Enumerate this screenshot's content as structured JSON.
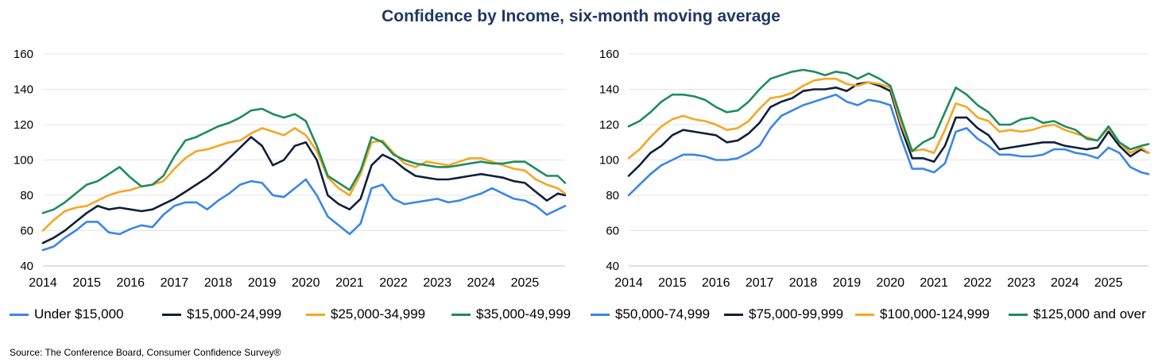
{
  "title": "Confidence by Income, six-month moving average",
  "source": "Source: The Conference Board, Consumer Confidence   Survey®",
  "chart_data": [
    {
      "type": "line",
      "title": "",
      "xlabel": "",
      "ylabel": "",
      "xlim": [
        2014,
        2025.917
      ],
      "ylim": [
        40,
        160
      ],
      "yticks": [
        40,
        60,
        80,
        100,
        120,
        140,
        160
      ],
      "xticks": [
        2014,
        2015,
        2016,
        2017,
        2018,
        2019,
        2020,
        2021,
        2022,
        2023,
        2024,
        2025
      ],
      "grid": true,
      "legend": "bottom",
      "series": [
        {
          "name": "Under $15,000",
          "color": "#3a86e8",
          "x": [
            2014,
            2014.25,
            2014.5,
            2014.75,
            2015,
            2015.25,
            2015.5,
            2015.75,
            2016,
            2016.25,
            2016.5,
            2016.75,
            2017,
            2017.25,
            2017.5,
            2017.75,
            2018,
            2018.25,
            2018.5,
            2018.75,
            2019,
            2019.25,
            2019.5,
            2019.75,
            2020,
            2020.25,
            2020.5,
            2020.75,
            2021,
            2021.25,
            2021.5,
            2021.75,
            2022,
            2022.25,
            2022.5,
            2022.75,
            2023,
            2023.25,
            2023.5,
            2023.75,
            2024,
            2024.25,
            2024.5,
            2024.75,
            2025,
            2025.25,
            2025.5,
            2025.75,
            2025.917
          ],
          "values": [
            49,
            51,
            56,
            60,
            65,
            65,
            59,
            58,
            61,
            63,
            62,
            69,
            74,
            76,
            76,
            72,
            77,
            81,
            86,
            88,
            87,
            80,
            79,
            84,
            89,
            80,
            68,
            63,
            58,
            64,
            84,
            86,
            78,
            75,
            76,
            77,
            78,
            76,
            77,
            79,
            81,
            84,
            81,
            78,
            77,
            74,
            69,
            72,
            74
          ]
        },
        {
          "name": "$15,000-24,999",
          "color": "#0f1f3d",
          "x": [
            2014,
            2014.25,
            2014.5,
            2014.75,
            2015,
            2015.25,
            2015.5,
            2015.75,
            2016,
            2016.25,
            2016.5,
            2016.75,
            2017,
            2017.25,
            2017.5,
            2017.75,
            2018,
            2018.25,
            2018.5,
            2018.75,
            2019,
            2019.25,
            2019.5,
            2019.75,
            2020,
            2020.25,
            2020.5,
            2020.75,
            2021,
            2021.25,
            2021.5,
            2021.75,
            2022,
            2022.25,
            2022.5,
            2022.75,
            2023,
            2023.25,
            2023.5,
            2023.75,
            2024,
            2024.25,
            2024.5,
            2024.75,
            2025,
            2025.25,
            2025.5,
            2025.75,
            2025.917
          ],
          "values": [
            53,
            56,
            60,
            65,
            70,
            74,
            72,
            73,
            72,
            71,
            72,
            75,
            78,
            82,
            86,
            90,
            95,
            101,
            107,
            113,
            108,
            97,
            100,
            108,
            110,
            100,
            80,
            75,
            72,
            78,
            97,
            103,
            100,
            95,
            91,
            90,
            89,
            89,
            90,
            91,
            92,
            91,
            90,
            88,
            87,
            82,
            77,
            81,
            80
          ]
        },
        {
          "name": "$25,000-34,999",
          "color": "#f5a623",
          "x": [
            2014,
            2014.25,
            2014.5,
            2014.75,
            2015,
            2015.25,
            2015.5,
            2015.75,
            2016,
            2016.25,
            2016.5,
            2016.75,
            2017,
            2017.25,
            2017.5,
            2017.75,
            2018,
            2018.25,
            2018.5,
            2018.75,
            2019,
            2019.25,
            2019.5,
            2019.75,
            2020,
            2020.25,
            2020.5,
            2020.75,
            2021,
            2021.25,
            2021.5,
            2021.75,
            2022,
            2022.25,
            2022.5,
            2022.75,
            2023,
            2023.25,
            2023.5,
            2023.75,
            2024,
            2024.25,
            2024.5,
            2024.75,
            2025,
            2025.25,
            2025.5,
            2025.75,
            2025.917
          ],
          "values": [
            60,
            66,
            71,
            73,
            74,
            77,
            80,
            82,
            83,
            85,
            86,
            88,
            95,
            101,
            105,
            106,
            108,
            110,
            111,
            115,
            118,
            116,
            114,
            118,
            114,
            105,
            90,
            84,
            80,
            92,
            110,
            111,
            104,
            98,
            96,
            99,
            98,
            97,
            99,
            101,
            101,
            99,
            97,
            95,
            94,
            89,
            86,
            84,
            81
          ]
        },
        {
          "name": "$35,000-49,999",
          "color": "#1e8c5e",
          "x": [
            2014,
            2014.25,
            2014.5,
            2014.75,
            2015,
            2015.25,
            2015.5,
            2015.75,
            2016,
            2016.25,
            2016.5,
            2016.75,
            2017,
            2017.25,
            2017.5,
            2017.75,
            2018,
            2018.25,
            2018.5,
            2018.75,
            2019,
            2019.25,
            2019.5,
            2019.75,
            2020,
            2020.25,
            2020.5,
            2020.75,
            2021,
            2021.25,
            2021.5,
            2021.75,
            2022,
            2022.25,
            2022.5,
            2022.75,
            2023,
            2023.25,
            2023.5,
            2023.75,
            2024,
            2024.25,
            2024.5,
            2024.75,
            2025,
            2025.25,
            2025.5,
            2025.75,
            2025.917
          ],
          "values": [
            70,
            72,
            76,
            81,
            86,
            88,
            92,
            96,
            90,
            85,
            86,
            91,
            102,
            111,
            113,
            116,
            119,
            121,
            124,
            128,
            129,
            126,
            124,
            126,
            122,
            108,
            91,
            87,
            83,
            94,
            113,
            110,
            103,
            100,
            98,
            97,
            96,
            96,
            97,
            98,
            99,
            98,
            98,
            99,
            99,
            95,
            91,
            91,
            87
          ]
        }
      ]
    },
    {
      "type": "line",
      "title": "",
      "xlabel": "",
      "ylabel": "",
      "xlim": [
        2014,
        2025.917
      ],
      "ylim": [
        40,
        160
      ],
      "yticks": [
        40,
        60,
        80,
        100,
        120,
        140,
        160
      ],
      "xticks": [
        2014,
        2015,
        2016,
        2017,
        2018,
        2019,
        2020,
        2021,
        2022,
        2023,
        2024,
        2025
      ],
      "grid": true,
      "legend": "bottom",
      "series": [
        {
          "name": "$50,000-74,999",
          "color": "#3a86e8",
          "x": [
            2014,
            2014.25,
            2014.5,
            2014.75,
            2015,
            2015.25,
            2015.5,
            2015.75,
            2016,
            2016.25,
            2016.5,
            2016.75,
            2017,
            2017.25,
            2017.5,
            2017.75,
            2018,
            2018.25,
            2018.5,
            2018.75,
            2019,
            2019.25,
            2019.5,
            2019.75,
            2020,
            2020.25,
            2020.5,
            2020.75,
            2021,
            2021.25,
            2021.5,
            2021.75,
            2022,
            2022.25,
            2022.5,
            2022.75,
            2023,
            2023.25,
            2023.5,
            2023.75,
            2024,
            2024.25,
            2024.5,
            2024.75,
            2025,
            2025.25,
            2025.5,
            2025.75,
            2025.917
          ],
          "values": [
            80,
            86,
            92,
            97,
            100,
            103,
            103,
            102,
            100,
            100,
            101,
            104,
            108,
            118,
            125,
            128,
            131,
            133,
            135,
            137,
            133,
            131,
            134,
            133,
            131,
            112,
            95,
            95,
            93,
            98,
            116,
            118,
            112,
            108,
            103,
            103,
            102,
            102,
            103,
            106,
            106,
            104,
            103,
            101,
            107,
            104,
            96,
            93,
            92
          ]
        },
        {
          "name": "$75,000-99,999",
          "color": "#0f1f3d",
          "x": [
            2014,
            2014.25,
            2014.5,
            2014.75,
            2015,
            2015.25,
            2015.5,
            2015.75,
            2016,
            2016.25,
            2016.5,
            2016.75,
            2017,
            2017.25,
            2017.5,
            2017.75,
            2018,
            2018.25,
            2018.5,
            2018.75,
            2019,
            2019.25,
            2019.5,
            2019.75,
            2020,
            2020.25,
            2020.5,
            2020.75,
            2021,
            2021.25,
            2021.5,
            2021.75,
            2022,
            2022.25,
            2022.5,
            2022.75,
            2023,
            2023.25,
            2023.5,
            2023.75,
            2024,
            2024.25,
            2024.5,
            2024.75,
            2025,
            2025.25,
            2025.5,
            2025.75,
            2025.917
          ],
          "values": [
            91,
            97,
            104,
            108,
            114,
            117,
            116,
            115,
            114,
            110,
            111,
            115,
            121,
            130,
            133,
            135,
            139,
            140,
            140,
            141,
            139,
            143,
            144,
            142,
            139,
            118,
            101,
            101,
            99,
            108,
            124,
            124,
            118,
            114,
            106,
            107,
            108,
            109,
            110,
            110,
            108,
            107,
            106,
            107,
            116,
            108,
            102,
            106,
            104
          ]
        },
        {
          "name": "$100,000-124,999",
          "color": "#f5a623",
          "x": [
            2014,
            2014.25,
            2014.5,
            2014.75,
            2015,
            2015.25,
            2015.5,
            2015.75,
            2016,
            2016.25,
            2016.5,
            2016.75,
            2017,
            2017.25,
            2017.5,
            2017.75,
            2018,
            2018.25,
            2018.5,
            2018.75,
            2019,
            2019.25,
            2019.5,
            2019.75,
            2020,
            2020.25,
            2020.5,
            2020.75,
            2021,
            2021.25,
            2021.5,
            2021.75,
            2022,
            2022.25,
            2022.5,
            2022.75,
            2023,
            2023.25,
            2023.5,
            2023.75,
            2024,
            2024.25,
            2024.5,
            2024.75,
            2025,
            2025.25,
            2025.5,
            2025.75,
            2025.917
          ],
          "values": [
            101,
            106,
            113,
            119,
            123,
            125,
            123,
            122,
            120,
            117,
            118,
            122,
            129,
            135,
            136,
            138,
            142,
            145,
            146,
            146,
            143,
            142,
            144,
            143,
            141,
            120,
            105,
            106,
            104,
            117,
            132,
            130,
            124,
            122,
            116,
            117,
            116,
            117,
            119,
            120,
            117,
            115,
            113,
            111,
            118,
            110,
            104,
            107,
            104
          ]
        },
        {
          "name": "$125,000 and over",
          "color": "#1e8c5e",
          "x": [
            2014,
            2014.25,
            2014.5,
            2014.75,
            2015,
            2015.25,
            2015.5,
            2015.75,
            2016,
            2016.25,
            2016.5,
            2016.75,
            2017,
            2017.25,
            2017.5,
            2017.75,
            2018,
            2018.25,
            2018.5,
            2018.75,
            2019,
            2019.25,
            2019.5,
            2019.75,
            2020,
            2020.25,
            2020.5,
            2020.75,
            2021,
            2021.25,
            2021.5,
            2021.75,
            2022,
            2022.25,
            2022.5,
            2022.75,
            2023,
            2023.25,
            2023.5,
            2023.75,
            2024,
            2024.25,
            2024.5,
            2024.75,
            2025,
            2025.25,
            2025.5,
            2025.75,
            2025.917
          ],
          "values": [
            119,
            122,
            127,
            133,
            137,
            137,
            136,
            134,
            130,
            127,
            128,
            133,
            140,
            146,
            148,
            150,
            151,
            150,
            148,
            150,
            149,
            146,
            149,
            146,
            142,
            123,
            105,
            110,
            113,
            127,
            141,
            137,
            131,
            127,
            120,
            120,
            123,
            124,
            121,
            122,
            119,
            117,
            112,
            111,
            119,
            110,
            106,
            108,
            109
          ]
        }
      ]
    }
  ]
}
